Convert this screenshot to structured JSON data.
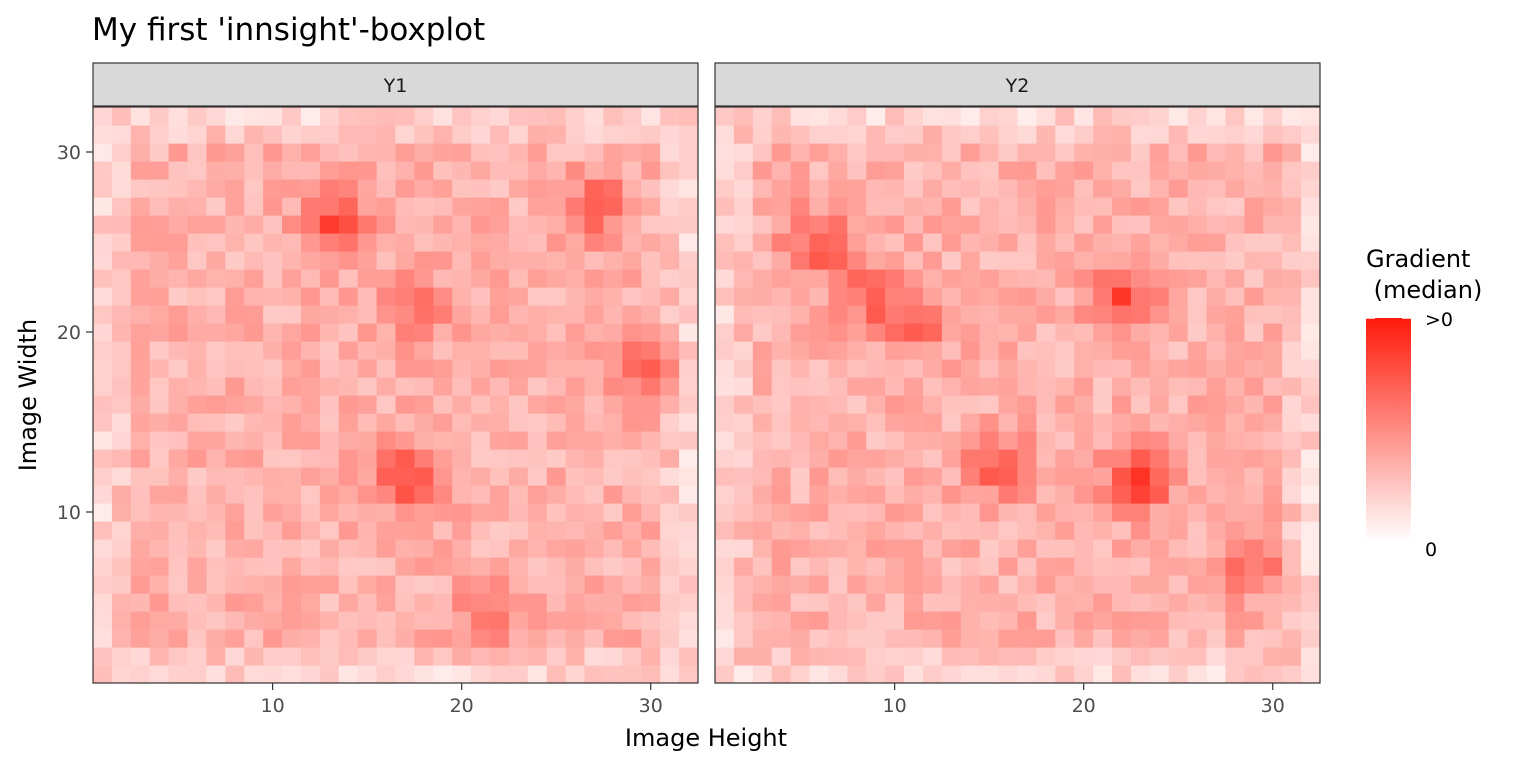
{
  "chart_data": {
    "type": "heatmap",
    "title": "My first 'innsight'-boxplot",
    "xlabel": "Image Height",
    "ylabel": "Image Width",
    "x_range": [
      1,
      32
    ],
    "y_range": [
      1,
      32
    ],
    "x_ticks": [
      10,
      20,
      30
    ],
    "y_ticks": [
      10,
      20,
      30
    ],
    "facets": [
      {
        "label": "Y1",
        "hotspots": [
          [
            13.5,
            26.0,
            0.8
          ],
          [
            17.0,
            12.0,
            0.85
          ],
          [
            27.0,
            27.0,
            0.62
          ],
          [
            30.0,
            18.0,
            0.62
          ],
          [
            17.5,
            21.5,
            0.5
          ],
          [
            21.5,
            4.5,
            0.45
          ]
        ]
      },
      {
        "label": "Y2",
        "hotspots": [
          [
            23.0,
            12.0,
            1.0
          ],
          [
            6.0,
            25.0,
            0.7
          ],
          [
            22.0,
            22.0,
            0.8
          ],
          [
            15.5,
            12.5,
            0.6
          ],
          [
            11.0,
            20.5,
            0.6
          ],
          [
            29.0,
            7.0,
            0.55
          ],
          [
            8.5,
            22.0,
            0.55
          ]
        ]
      }
    ],
    "value_scale": {
      "min": 0,
      "max": 1
    },
    "legend": {
      "title_line1": "Gradient",
      "title_line2": " (median)",
      "max_label": ">0",
      "min_label": "0",
      "low_color": "#ffffff",
      "high_color": "#ff1a0a",
      "position": "right"
    },
    "grid": false
  }
}
